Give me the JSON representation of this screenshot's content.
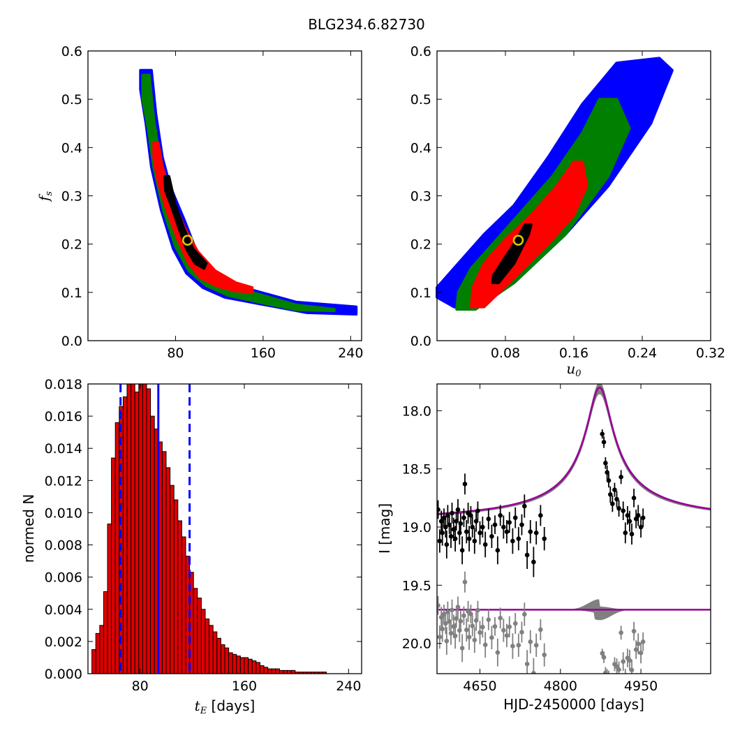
{
  "figure": {
    "title": "BLG234.6.82730"
  },
  "chart_data": [
    {
      "type": "heatmap",
      "panel": "top-left",
      "xlabel": "",
      "ylabel": "f_s",
      "xlim": [
        0,
        250
      ],
      "ylim": [
        0,
        0.6
      ],
      "xticks": [
        80,
        160,
        240
      ],
      "xtick_labels": [
        "80",
        "160",
        "240"
      ],
      "yticks": [
        0.0,
        0.1,
        0.2,
        0.3,
        0.4,
        0.5,
        0.6
      ],
      "ytick_labels": [
        "0.0",
        "0.1",
        "0.2",
        "0.3",
        "0.4",
        "0.5",
        "0.6"
      ],
      "level_colors": [
        "#0000ff",
        "#007f00",
        "#ff0000",
        "#000000"
      ],
      "best_fit": {
        "x": 91,
        "y": 0.208
      },
      "regions": [
        {
          "level": 0,
          "points": [
            [
              48,
              0.56
            ],
            [
              58,
              0.56
            ],
            [
              62,
              0.47
            ],
            [
              68,
              0.38
            ],
            [
              75,
              0.32
            ],
            [
              88,
              0.25
            ],
            [
              100,
              0.18
            ],
            [
              120,
              0.13
            ],
            [
              150,
              0.105
            ],
            [
              190,
              0.08
            ],
            [
              245,
              0.07
            ],
            [
              245,
              0.055
            ],
            [
              200,
              0.058
            ],
            [
              160,
              0.075
            ],
            [
              125,
              0.09
            ],
            [
              105,
              0.11
            ],
            [
              90,
              0.14
            ],
            [
              78,
              0.19
            ],
            [
              67,
              0.27
            ],
            [
              58,
              0.36
            ],
            [
              53,
              0.45
            ],
            [
              48,
              0.52
            ]
          ]
        },
        {
          "level": 1,
          "points": [
            [
              50,
              0.55
            ],
            [
              56,
              0.55
            ],
            [
              60,
              0.46
            ],
            [
              66,
              0.37
            ],
            [
              74,
              0.31
            ],
            [
              86,
              0.24
            ],
            [
              100,
              0.17
            ],
            [
              120,
              0.125
            ],
            [
              150,
              0.1
            ],
            [
              190,
              0.074
            ],
            [
              225,
              0.065
            ],
            [
              225,
              0.062
            ],
            [
              190,
              0.064
            ],
            [
              160,
              0.078
            ],
            [
              128,
              0.094
            ],
            [
              108,
              0.114
            ],
            [
              92,
              0.145
            ],
            [
              80,
              0.195
            ],
            [
              69,
              0.27
            ],
            [
              60,
              0.36
            ],
            [
              55,
              0.44
            ],
            [
              50,
              0.5
            ]
          ]
        },
        {
          "level": 2,
          "points": [
            [
              60,
              0.41
            ],
            [
              64,
              0.41
            ],
            [
              68,
              0.36
            ],
            [
              76,
              0.3
            ],
            [
              88,
              0.235
            ],
            [
              100,
              0.185
            ],
            [
              116,
              0.145
            ],
            [
              135,
              0.12
            ],
            [
              150,
              0.11
            ],
            [
              150,
              0.1
            ],
            [
              135,
              0.103
            ],
            [
              118,
              0.113
            ],
            [
              103,
              0.13
            ],
            [
              92,
              0.16
            ],
            [
              82,
              0.21
            ],
            [
              72,
              0.27
            ],
            [
              64,
              0.33
            ],
            [
              60,
              0.38
            ]
          ]
        },
        {
          "level": 3,
          "points": [
            [
              70,
              0.34
            ],
            [
              74,
              0.34
            ],
            [
              80,
              0.28
            ],
            [
              88,
              0.23
            ],
            [
              96,
              0.19
            ],
            [
              104,
              0.17
            ],
            [
              108,
              0.16
            ],
            [
              106,
              0.15
            ],
            [
              98,
              0.16
            ],
            [
              90,
              0.19
            ],
            [
              82,
              0.24
            ],
            [
              76,
              0.28
            ],
            [
              71,
              0.31
            ]
          ]
        }
      ]
    },
    {
      "type": "heatmap",
      "panel": "top-right",
      "xlabel": "u_0",
      "ylabel": "",
      "xlim": [
        0,
        0.32
      ],
      "ylim": [
        0,
        0.6
      ],
      "xticks": [
        0.08,
        0.16,
        0.24,
        0.32
      ],
      "xtick_labels": [
        "0.08",
        "0.16",
        "0.24",
        "0.32"
      ],
      "yticks": [
        0.0,
        0.1,
        0.2,
        0.3,
        0.4,
        0.5,
        0.6
      ],
      "ytick_labels": [
        "0.0",
        "0.1",
        "0.2",
        "0.3",
        "0.4",
        "0.5",
        "0.6"
      ],
      "level_colors": [
        "#0000ff",
        "#007f00",
        "#ff0000",
        "#000000"
      ],
      "best_fit": {
        "x": 0.095,
        "y": 0.208
      },
      "regions": [
        {
          "level": 0,
          "points": [
            [
              0.0,
              0.11
            ],
            [
              0.0,
              0.09
            ],
            [
              0.02,
              0.07
            ],
            [
              0.045,
              0.065
            ],
            [
              0.09,
              0.12
            ],
            [
              0.15,
              0.22
            ],
            [
              0.2,
              0.32
            ],
            [
              0.25,
              0.45
            ],
            [
              0.275,
              0.56
            ],
            [
              0.26,
              0.585
            ],
            [
              0.21,
              0.575
            ],
            [
              0.17,
              0.49
            ],
            [
              0.13,
              0.38
            ],
            [
              0.09,
              0.28
            ],
            [
              0.055,
              0.22
            ],
            [
              0.025,
              0.16
            ]
          ]
        },
        {
          "level": 1,
          "points": [
            [
              0.023,
              0.065
            ],
            [
              0.045,
              0.065
            ],
            [
              0.09,
              0.12
            ],
            [
              0.15,
              0.22
            ],
            [
              0.2,
              0.34
            ],
            [
              0.225,
              0.44
            ],
            [
              0.21,
              0.5
            ],
            [
              0.19,
              0.5
            ],
            [
              0.17,
              0.43
            ],
            [
              0.135,
              0.34
            ],
            [
              0.1,
              0.27
            ],
            [
              0.07,
              0.21
            ],
            [
              0.04,
              0.15
            ],
            [
              0.025,
              0.1
            ]
          ]
        },
        {
          "level": 2,
          "points": [
            [
              0.04,
              0.07
            ],
            [
              0.055,
              0.07
            ],
            [
              0.09,
              0.13
            ],
            [
              0.13,
              0.2
            ],
            [
              0.16,
              0.26
            ],
            [
              0.175,
              0.32
            ],
            [
              0.17,
              0.37
            ],
            [
              0.16,
              0.37
            ],
            [
              0.14,
              0.32
            ],
            [
              0.11,
              0.26
            ],
            [
              0.08,
              0.21
            ],
            [
              0.055,
              0.16
            ],
            [
              0.042,
              0.11
            ]
          ]
        },
        {
          "level": 3,
          "points": [
            [
              0.065,
              0.12
            ],
            [
              0.072,
              0.12
            ],
            [
              0.09,
              0.16
            ],
            [
              0.107,
              0.22
            ],
            [
              0.11,
              0.24
            ],
            [
              0.103,
              0.24
            ],
            [
              0.09,
              0.2
            ],
            [
              0.075,
              0.16
            ],
            [
              0.066,
              0.135
            ]
          ]
        }
      ]
    },
    {
      "type": "bar",
      "panel": "bottom-left",
      "xlabel": "t_E  [days]",
      "ylabel": "normed N",
      "xlim": [
        40,
        250
      ],
      "ylim": [
        0,
        0.018
      ],
      "xticks": [
        80,
        160,
        240
      ],
      "xtick_labels": [
        "80",
        "160",
        "240"
      ],
      "yticks": [
        0.0,
        0.002,
        0.004,
        0.006,
        0.008,
        0.01,
        0.012,
        0.014,
        0.016,
        0.018
      ],
      "ytick_labels": [
        "0.000",
        "0.002",
        "0.004",
        "0.006",
        "0.008",
        "0.010",
        "0.012",
        "0.014",
        "0.016",
        "0.018"
      ],
      "bar_color": "#dd0000",
      "bin_start": 43,
      "bin_width": 3,
      "values": [
        0.0015,
        0.0025,
        0.003,
        0.0051,
        0.0093,
        0.0134,
        0.0156,
        0.0166,
        0.0172,
        0.0184,
        0.0183,
        0.0175,
        0.0182,
        0.0187,
        0.0177,
        0.016,
        0.0152,
        0.0144,
        0.0138,
        0.0128,
        0.0117,
        0.0108,
        0.0095,
        0.0085,
        0.0073,
        0.0063,
        0.0053,
        0.0047,
        0.004,
        0.0034,
        0.003,
        0.0026,
        0.0022,
        0.0018,
        0.0016,
        0.0013,
        0.0012,
        0.0011,
        0.001,
        0.001,
        0.0009,
        0.0008,
        0.0007,
        0.0005,
        0.0004,
        0.0003,
        0.0003,
        0.0003,
        0.0002,
        0.0002,
        0.0002,
        0.0002,
        0.0001,
        0.0001,
        0.0001,
        0.0001,
        0.0001,
        0.0001,
        0.0001,
        0.0001,
        0.0,
        0.0,
        0.0,
        0.0,
        0.0,
        0.0,
        0.0
      ],
      "median": 94,
      "interval": [
        65,
        118
      ],
      "line_color": "#0000ff"
    },
    {
      "type": "scatter",
      "panel": "bottom-right",
      "xlabel": "HJD-2450000 [days]",
      "ylabel": "I [mag]",
      "xlim": [
        4570,
        5080
      ],
      "ylim": [
        20.26,
        17.77
      ],
      "xticks": [
        4650,
        4800,
        4950
      ],
      "xtick_labels": [
        "4650",
        "4800",
        "4950"
      ],
      "yticks": [
        18.0,
        18.5,
        19.0,
        19.5,
        20.0
      ],
      "ytick_labels": [
        "18.0",
        "18.5",
        "19.0",
        "19.5",
        "20.0"
      ],
      "model": {
        "t0": 4873,
        "baseline": 18.98,
        "peak": 17.8,
        "tau": 38,
        "color": "#990099"
      },
      "band_color": "#808080",
      "residual_offset": 19.71,
      "data_color": "#000000",
      "residual_color": "#808080",
      "x": [
        4572,
        4575,
        4578,
        4580,
        4583,
        4586,
        4588,
        4590,
        4593,
        4596,
        4598,
        4601,
        4604,
        4606,
        4609,
        4612,
        4614,
        4617,
        4620,
        4622,
        4625,
        4628,
        4630,
        4633,
        4636,
        4640,
        4643,
        4646,
        4650,
        4655,
        4660,
        4666,
        4672,
        4678,
        4683,
        4688,
        4694,
        4700,
        4705,
        4711,
        4716,
        4722,
        4728,
        4733,
        4738,
        4744,
        4750,
        4755,
        4763,
        4770,
        4878,
        4881,
        4884,
        4887,
        4890,
        4893,
        4897,
        4901,
        4905,
        4909,
        4913,
        4917,
        4921,
        4925,
        4929,
        4933,
        4937,
        4941,
        4945,
        4950,
        4954
      ],
      "y": [
        18.85,
        19.12,
        18.95,
        19.05,
        18.92,
        19.0,
        19.15,
        18.9,
        18.98,
        19.08,
        18.88,
        19.02,
        19.1,
        18.95,
        18.85,
        19.05,
        18.97,
        19.2,
        18.92,
        18.63,
        19.04,
        18.88,
        19.1,
        18.9,
        19.0,
        19.12,
        18.95,
        18.86,
        19.05,
        19.0,
        19.15,
        18.93,
        19.08,
        18.98,
        19.2,
        18.9,
        19.0,
        19.04,
        18.96,
        19.12,
        18.92,
        19.1,
        18.98,
        18.82,
        19.24,
        19.04,
        19.3,
        19.05,
        18.9,
        19.1,
        18.2,
        18.27,
        18.45,
        18.53,
        18.6,
        18.72,
        18.8,
        18.68,
        18.76,
        18.84,
        18.57,
        18.86,
        19.05,
        18.9,
        18.95,
        19.06,
        18.75,
        18.93,
        18.9,
        19.0,
        18.92
      ],
      "err": [
        0.08,
        0.1,
        0.09,
        0.11,
        0.08,
        0.09,
        0.12,
        0.09,
        0.08,
        0.1,
        0.09,
        0.1,
        0.11,
        0.08,
        0.09,
        0.1,
        0.09,
        0.12,
        0.08,
        0.09,
        0.1,
        0.09,
        0.11,
        0.08,
        0.09,
        0.11,
        0.09,
        0.08,
        0.1,
        0.09,
        0.11,
        0.09,
        0.1,
        0.08,
        0.12,
        0.09,
        0.1,
        0.1,
        0.09,
        0.11,
        0.09,
        0.1,
        0.09,
        0.1,
        0.12,
        0.1,
        0.13,
        0.1,
        0.09,
        0.1,
        0.04,
        0.05,
        0.05,
        0.06,
        0.06,
        0.07,
        0.07,
        0.06,
        0.07,
        0.07,
        0.06,
        0.08,
        0.09,
        0.08,
        0.09,
        0.09,
        0.08,
        0.08,
        0.09,
        0.09,
        0.08
      ]
    }
  ]
}
